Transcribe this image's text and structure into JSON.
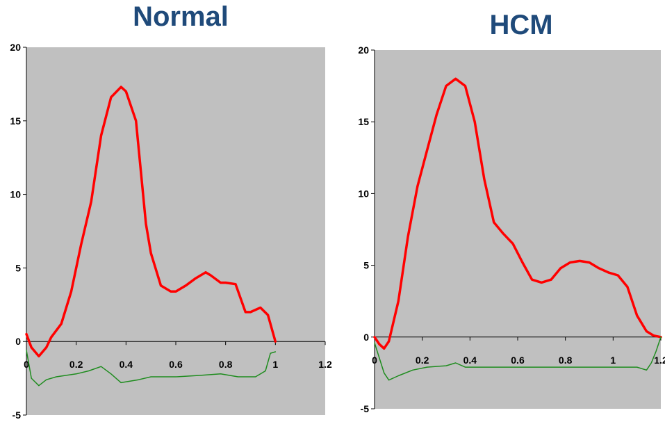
{
  "chart_data": [
    {
      "type": "line",
      "title": "Normal",
      "xlabel": "",
      "ylabel": "",
      "xlim": [
        0,
        1.2
      ],
      "ylim": [
        -5,
        20
      ],
      "xticks": [
        "0",
        "0.2",
        "0.4",
        "0.6",
        "0.8",
        "1",
        "1.2"
      ],
      "yticks": [
        "-5",
        "0",
        "5",
        "10",
        "15",
        "20"
      ],
      "grid": false,
      "background": "#c0c0c0",
      "series": [
        {
          "color": "#ff0000",
          "x": [
            0,
            0.02,
            0.05,
            0.08,
            0.1,
            0.14,
            0.18,
            0.22,
            0.26,
            0.3,
            0.34,
            0.38,
            0.4,
            0.44,
            0.48,
            0.5,
            0.54,
            0.58,
            0.6,
            0.64,
            0.68,
            0.72,
            0.74,
            0.78,
            0.8,
            0.84,
            0.88,
            0.9,
            0.94,
            0.97,
            1.0
          ],
          "y": [
            0.5,
            -0.4,
            -1.0,
            -0.4,
            0.3,
            1.2,
            3.4,
            6.6,
            9.5,
            14.0,
            16.6,
            17.3,
            17.0,
            15.0,
            8.0,
            6.0,
            3.8,
            3.4,
            3.4,
            3.8,
            4.3,
            4.7,
            4.5,
            4.0,
            4.0,
            3.9,
            2.0,
            2.0,
            2.3,
            1.8,
            0.0
          ]
        },
        {
          "color": "#1e8c1e",
          "x": [
            0,
            0.02,
            0.05,
            0.08,
            0.12,
            0.2,
            0.25,
            0.3,
            0.34,
            0.38,
            0.45,
            0.5,
            0.6,
            0.7,
            0.78,
            0.85,
            0.92,
            0.96,
            0.98,
            1.0
          ],
          "y": [
            -0.6,
            -2.5,
            -3.0,
            -2.6,
            -2.4,
            -2.2,
            -2.0,
            -1.7,
            -2.2,
            -2.8,
            -2.6,
            -2.4,
            -2.4,
            -2.3,
            -2.2,
            -2.4,
            -2.4,
            -2.0,
            -0.8,
            -0.7
          ]
        }
      ]
    },
    {
      "type": "line",
      "title": "HCM",
      "xlabel": "",
      "ylabel": "",
      "xlim": [
        0,
        1.2
      ],
      "ylim": [
        -5,
        20
      ],
      "xticks": [
        "0",
        "0.2",
        "0.4",
        "0.6",
        "0.8",
        "1",
        "1.2"
      ],
      "yticks": [
        "-5",
        "0",
        "5",
        "10",
        "15",
        "20"
      ],
      "grid": false,
      "background": "#c0c0c0",
      "series": [
        {
          "color": "#ff0000",
          "x": [
            0,
            0.02,
            0.04,
            0.06,
            0.1,
            0.14,
            0.18,
            0.22,
            0.26,
            0.3,
            0.34,
            0.38,
            0.42,
            0.46,
            0.5,
            0.54,
            0.58,
            0.62,
            0.66,
            0.7,
            0.74,
            0.78,
            0.82,
            0.86,
            0.9,
            0.94,
            0.98,
            1.02,
            1.06,
            1.1,
            1.14,
            1.17,
            1.2
          ],
          "y": [
            0.0,
            -0.5,
            -0.8,
            -0.3,
            2.5,
            7.0,
            10.5,
            13.0,
            15.5,
            17.5,
            18.0,
            17.5,
            15.0,
            11.0,
            8.0,
            7.2,
            6.5,
            5.2,
            4.0,
            3.8,
            4.0,
            4.8,
            5.2,
            5.3,
            5.2,
            4.8,
            4.5,
            4.3,
            3.5,
            1.5,
            0.4,
            0.1,
            0.0
          ]
        },
        {
          "color": "#1e8c1e",
          "x": [
            0,
            0.04,
            0.06,
            0.1,
            0.16,
            0.22,
            0.3,
            0.34,
            0.38,
            0.46,
            0.6,
            0.8,
            1.0,
            1.1,
            1.14,
            1.16,
            1.18,
            1.2
          ],
          "y": [
            -0.4,
            -2.5,
            -3.0,
            -2.7,
            -2.3,
            -2.1,
            -2.0,
            -1.8,
            -2.1,
            -2.1,
            -2.1,
            -2.1,
            -2.1,
            -2.1,
            -2.3,
            -1.8,
            -1.0,
            0.0
          ]
        }
      ]
    }
  ]
}
